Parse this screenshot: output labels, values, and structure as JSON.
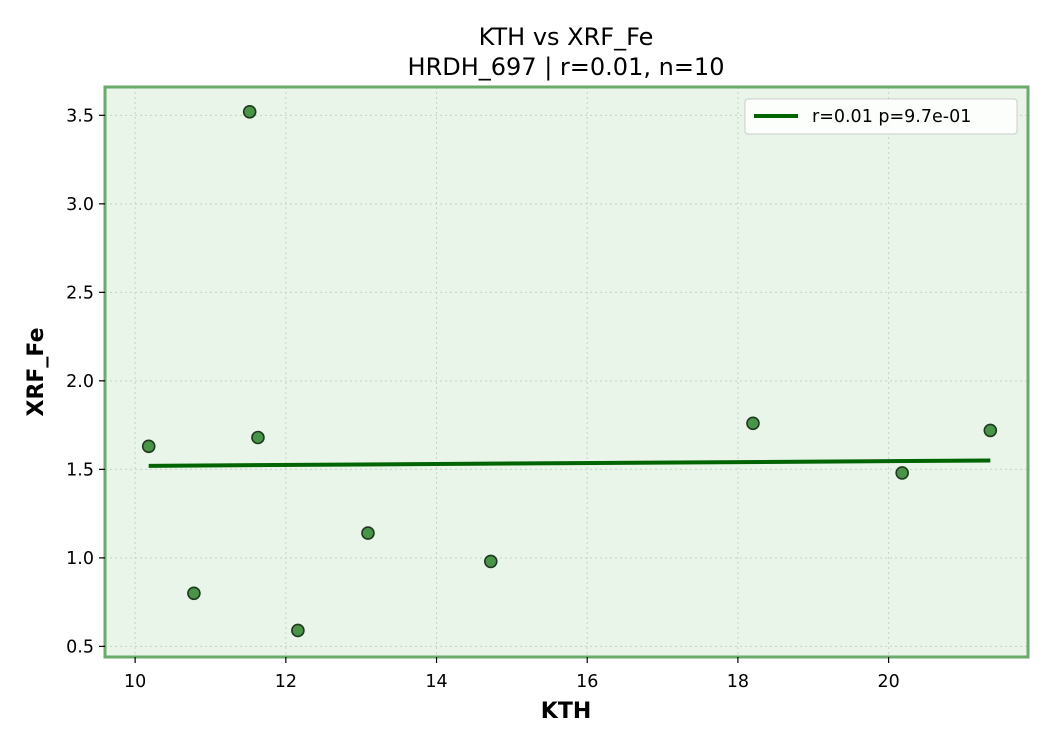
{
  "chart_data": {
    "type": "scatter",
    "title": "KTH vs XRF_Fe",
    "subtitle": "HRDH_697 | r=0.01, n=10",
    "xlabel": "KTH",
    "ylabel": "XRF_Fe",
    "xlim": [
      9.6,
      21.85
    ],
    "ylim": [
      0.44,
      3.66
    ],
    "xticks": [
      10,
      12,
      14,
      16,
      18,
      20
    ],
    "yticks": [
      0.5,
      1.0,
      1.5,
      2.0,
      2.5,
      3.0,
      3.5
    ],
    "xtick_labels": [
      "10",
      "12",
      "14",
      "16",
      "18",
      "20"
    ],
    "ytick_labels": [
      "0.5",
      "1.0",
      "1.5",
      "2.0",
      "2.5",
      "3.0",
      "3.5"
    ],
    "grid": true,
    "legend_position": "top-right",
    "points": [
      {
        "x": 10.18,
        "y": 1.63
      },
      {
        "x": 10.78,
        "y": 0.8
      },
      {
        "x": 11.52,
        "y": 3.52
      },
      {
        "x": 11.63,
        "y": 1.68
      },
      {
        "x": 12.16,
        "y": 0.59
      },
      {
        "x": 13.09,
        "y": 1.14
      },
      {
        "x": 14.72,
        "y": 0.98
      },
      {
        "x": 18.2,
        "y": 1.76
      },
      {
        "x": 20.18,
        "y": 1.48
      },
      {
        "x": 21.35,
        "y": 1.72
      }
    ],
    "fit_line": {
      "x": [
        10.18,
        21.35
      ],
      "y": [
        1.52,
        1.55
      ],
      "label": "r=0.01  p=9.7e-01"
    },
    "colors": {
      "plot_background": "#e8f5e8",
      "frame": "#6aaa6a",
      "marker_fill": "#4a944a",
      "marker_edge": "#1e3a1e",
      "fit_line": "#006400",
      "grid": "#c4d4c4"
    }
  }
}
